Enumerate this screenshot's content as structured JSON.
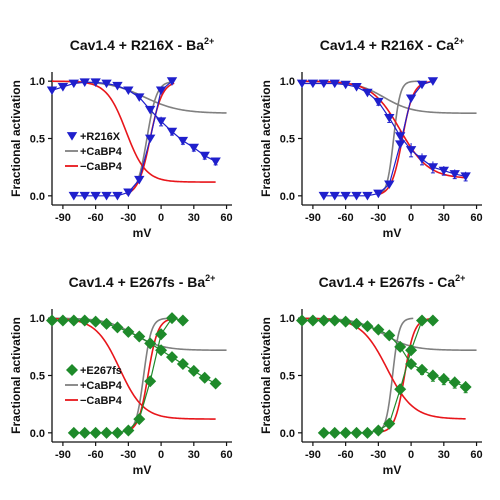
{
  "colors": {
    "r216x": "#1f1fcc",
    "e267fs": "#1e8a2a",
    "cabp4_plus": "#808080",
    "cabp4_minus": "#e8161b",
    "axis": "#111111"
  },
  "chart_data": [
    {
      "type": "scatter",
      "title": "Cav1.4 + R216X - Ba",
      "title_sup": "2+",
      "xlabel": "mV",
      "ylabel": "Fractional activation",
      "xlim": [
        -100,
        65
      ],
      "ylim": [
        -0.08,
        1.08
      ],
      "xticks": [
        -90,
        -60,
        -30,
        0,
        30,
        60
      ],
      "yticks": [
        0.0,
        0.5,
        1.0
      ],
      "ytick_labels": [
        "0.0",
        "0.5",
        "1.0"
      ],
      "grid": false,
      "legend_position": "lower-left",
      "legend": [
        {
          "label": "+R216X",
          "kind": "marker",
          "color_key": "r216x"
        },
        {
          "label": "+CaBP4",
          "kind": "line",
          "color_key": "cabp4_plus"
        },
        {
          "label": "−CaBP4",
          "kind": "line",
          "color_key": "cabp4_minus"
        }
      ],
      "marker": "triangle-down",
      "marker_color_key": "r216x",
      "series": [
        {
          "name": "+R216X",
          "x": [
            -80,
            -70,
            -60,
            -50,
            -40,
            -30,
            -20,
            -10,
            0,
            10
          ],
          "y": [
            0.0,
            0.0,
            0.0,
            0.0,
            0.0,
            0.03,
            0.14,
            0.5,
            0.92,
            1.0
          ]
        },
        {
          "name": "+R216X",
          "x": [
            -100,
            -90,
            -80,
            -70,
            -60,
            -50,
            -40,
            -30,
            -20,
            -10,
            0,
            10,
            20,
            30,
            40,
            50
          ],
          "y": [
            0.92,
            0.95,
            0.98,
            0.99,
            0.99,
            0.98,
            0.96,
            0.92,
            0.86,
            0.75,
            0.65,
            0.56,
            0.48,
            0.42,
            0.35,
            0.3
          ],
          "err": [
            0,
            0,
            0,
            0,
            0,
            0,
            0,
            0,
            0,
            0,
            0.04,
            0.03,
            0.03,
            0.03,
            0.03,
            0.03
          ]
        }
      ],
      "fits": [
        {
          "name": "+CaBP4",
          "color_key": "cabp4_plus",
          "kind": "act",
          "v": -13,
          "k": 4.5,
          "x": [
            -32,
            10
          ]
        },
        {
          "name": "+CaBP4",
          "color_key": "cabp4_plus",
          "kind": "inact",
          "v": -15,
          "k": 16,
          "base": 0.72,
          "x": [
            -100,
            60
          ]
        },
        {
          "name": "−CaBP4",
          "color_key": "cabp4_minus",
          "kind": "act",
          "v": -10,
          "k": 5.5,
          "x": [
            -32,
            12
          ]
        },
        {
          "name": "−CaBP4",
          "color_key": "cabp4_minus",
          "kind": "inact",
          "v": -32,
          "k": 9,
          "base": 0.12,
          "x": [
            -100,
            50
          ]
        }
      ]
    },
    {
      "type": "scatter",
      "title": "Cav1.4 + R216X - Ca",
      "title_sup": "2+",
      "xlabel": "mV",
      "ylabel": "Fractional activation",
      "xlim": [
        -100,
        65
      ],
      "ylim": [
        -0.08,
        1.08
      ],
      "xticks": [
        -90,
        -60,
        -30,
        0,
        30,
        60
      ],
      "yticks": [
        0.0,
        0.5,
        1.0
      ],
      "ytick_labels": [
        "0.0",
        "0.5",
        "1.0"
      ],
      "grid": false,
      "marker": "triangle-down",
      "marker_color_key": "r216x",
      "series": [
        {
          "name": "+R216X",
          "x": [
            -80,
            -70,
            -60,
            -50,
            -40,
            -30,
            -20,
            -10,
            0,
            10,
            20
          ],
          "y": [
            0.0,
            0.0,
            0.0,
            0.0,
            0.0,
            0.02,
            0.1,
            0.45,
            0.85,
            0.97,
            1.0
          ]
        },
        {
          "name": "+R216X",
          "x": [
            -100,
            -90,
            -80,
            -70,
            -60,
            -50,
            -40,
            -30,
            -20,
            -10,
            0,
            10,
            20,
            30,
            40,
            50
          ],
          "y": [
            0.98,
            0.98,
            0.98,
            0.98,
            0.97,
            0.95,
            0.9,
            0.82,
            0.68,
            0.52,
            0.4,
            0.32,
            0.25,
            0.22,
            0.19,
            0.17
          ],
          "err": [
            0,
            0,
            0,
            0,
            0,
            0,
            0,
            0.03,
            0.04,
            0.05,
            0.06,
            0.05,
            0.05,
            0.04,
            0.04,
            0.04
          ]
        }
      ],
      "fits": [
        {
          "name": "+CaBP4",
          "color_key": "cabp4_plus",
          "kind": "act",
          "v": -16,
          "k": 3,
          "x": [
            -30,
            8
          ]
        },
        {
          "name": "+CaBP4",
          "color_key": "cabp4_plus",
          "kind": "inact",
          "v": -25,
          "k": 13,
          "base": 0.72,
          "x": [
            -100,
            60
          ]
        },
        {
          "name": "−CaBP4",
          "color_key": "cabp4_minus",
          "kind": "act",
          "v": -8,
          "k": 5,
          "x": [
            -30,
            18
          ]
        },
        {
          "name": "−CaBP4",
          "color_key": "cabp4_minus",
          "kind": "inact",
          "v": -10,
          "k": 13,
          "base": 0.15,
          "x": [
            -100,
            50
          ]
        }
      ]
    },
    {
      "type": "scatter",
      "title": "Cav1.4 + E267fs - Ba",
      "title_sup": "2+",
      "xlabel": "mV",
      "ylabel": "Fractional activation",
      "xlim": [
        -100,
        65
      ],
      "ylim": [
        -0.08,
        1.08
      ],
      "xticks": [
        -90,
        -60,
        -30,
        0,
        30,
        60
      ],
      "yticks": [
        0.0,
        0.5,
        1.0
      ],
      "ytick_labels": [
        "0.0",
        "0.5",
        "1.0"
      ],
      "grid": false,
      "legend_position": "lower-left",
      "legend": [
        {
          "label": "+E267fs",
          "kind": "marker",
          "color_key": "e267fs"
        },
        {
          "label": "+CaBP4",
          "kind": "line",
          "color_key": "cabp4_plus"
        },
        {
          "label": "−CaBP4",
          "kind": "line",
          "color_key": "cabp4_minus"
        }
      ],
      "marker": "diamond",
      "marker_color_key": "e267fs",
      "series": [
        {
          "name": "+E267fs",
          "x": [
            -80,
            -70,
            -60,
            -50,
            -40,
            -30,
            -20,
            -10,
            0,
            10,
            20
          ],
          "y": [
            0.0,
            0.0,
            0.0,
            0.0,
            0.0,
            0.02,
            0.12,
            0.45,
            0.86,
            1.0,
            0.98
          ]
        },
        {
          "name": "+E267fs",
          "x": [
            -100,
            -90,
            -80,
            -70,
            -60,
            -50,
            -40,
            -30,
            -20,
            -10,
            0,
            10,
            20,
            30,
            40,
            50
          ],
          "y": [
            0.98,
            0.98,
            0.98,
            0.98,
            0.97,
            0.95,
            0.92,
            0.88,
            0.84,
            0.78,
            0.72,
            0.66,
            0.6,
            0.54,
            0.48,
            0.43
          ]
        }
      ],
      "fits": [
        {
          "name": "+CaBP4",
          "color_key": "cabp4_plus",
          "kind": "act",
          "v": -16,
          "k": 3.5,
          "x": [
            -30,
            5
          ]
        },
        {
          "name": "+CaBP4",
          "color_key": "cabp4_plus",
          "kind": "inact",
          "v": -25,
          "k": 13,
          "base": 0.72,
          "x": [
            -100,
            60
          ]
        },
        {
          "name": "−CaBP4",
          "color_key": "cabp4_minus",
          "kind": "act",
          "v": -12,
          "k": 4.5,
          "x": [
            -30,
            10
          ]
        },
        {
          "name": "−CaBP4",
          "color_key": "cabp4_minus",
          "kind": "inact",
          "v": -38,
          "k": 11,
          "base": 0.12,
          "x": [
            -100,
            50
          ]
        }
      ]
    },
    {
      "type": "scatter",
      "title": "Cav1.4 + E267fs - Ca",
      "title_sup": "2+",
      "xlabel": "mV",
      "ylabel": "Fractional activation",
      "xlim": [
        -100,
        65
      ],
      "ylim": [
        -0.08,
        1.08
      ],
      "xticks": [
        -90,
        -60,
        -30,
        0,
        30,
        60
      ],
      "yticks": [
        0.0,
        0.5,
        1.0
      ],
      "ytick_labels": [
        "0.0",
        "0.5",
        "1.0"
      ],
      "grid": false,
      "marker": "diamond",
      "marker_color_key": "e267fs",
      "series": [
        {
          "name": "+E267fs",
          "x": [
            -80,
            -70,
            -60,
            -50,
            -40,
            -30,
            -20,
            -10,
            0,
            10,
            20
          ],
          "y": [
            0.0,
            0.0,
            0.0,
            0.0,
            0.0,
            0.02,
            0.08,
            0.38,
            0.72,
            0.98,
            0.98
          ]
        },
        {
          "name": "+E267fs",
          "x": [
            -100,
            -90,
            -80,
            -70,
            -60,
            -50,
            -40,
            -30,
            -20,
            -10,
            0,
            10,
            20,
            30,
            40,
            50
          ],
          "y": [
            0.98,
            0.98,
            0.98,
            0.98,
            0.97,
            0.95,
            0.93,
            0.9,
            0.85,
            0.75,
            0.6,
            0.55,
            0.5,
            0.47,
            0.44,
            0.4
          ],
          "err": [
            0,
            0,
            0,
            0,
            0,
            0,
            0,
            0,
            0,
            0,
            0,
            0.04,
            0.05,
            0.05,
            0.05,
            0.05
          ]
        }
      ],
      "fits": [
        {
          "name": "+CaBP4",
          "color_key": "cabp4_plus",
          "kind": "act",
          "v": -17,
          "k": 3,
          "x": [
            -30,
            2
          ]
        },
        {
          "name": "+CaBP4",
          "color_key": "cabp4_plus",
          "kind": "inact",
          "v": -25,
          "k": 13,
          "base": 0.72,
          "x": [
            -100,
            60
          ]
        },
        {
          "name": "−CaBP4",
          "color_key": "cabp4_minus",
          "kind": "act",
          "v": -6,
          "k": 4.5,
          "x": [
            -30,
            18
          ]
        },
        {
          "name": "−CaBP4",
          "color_key": "cabp4_minus",
          "kind": "inact",
          "v": -22,
          "k": 12,
          "base": 0.12,
          "x": [
            -100,
            50
          ]
        }
      ]
    }
  ]
}
